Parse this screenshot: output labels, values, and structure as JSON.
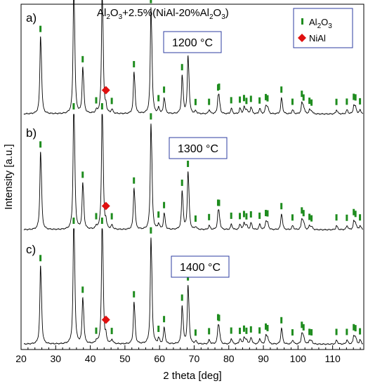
{
  "chart_data": {
    "type": "line",
    "title": {
      "base": "Al",
      "sub1": "2",
      "mid1": "O",
      "sub2": "3",
      "mid2": "+2.5%(NiAl-20%Al",
      "sub3": "2",
      "mid3": "O",
      "sub4": "3",
      "end": ")"
    },
    "xlabel": "2 theta [deg]",
    "ylabel": "Intensity [a.u.]",
    "xlim": [
      20,
      119
    ],
    "x_ticks": [
      20,
      30,
      40,
      50,
      60,
      70,
      80,
      90,
      100,
      110
    ],
    "legend": {
      "placement": "top-right",
      "entries": [
        {
          "marker": "bar",
          "color": "#1e8c1e",
          "label_parts": [
            "Al",
            "2",
            "O",
            "3"
          ]
        },
        {
          "marker": "diamond",
          "color": "#e01010",
          "label_parts": [
            "NiAl"
          ]
        }
      ]
    },
    "colors": {
      "al2o3": "#1e8c1e",
      "nial": "#e01010",
      "pattern": "#000000",
      "box": "#2d3ca0"
    },
    "panels": [
      {
        "label": "a)",
        "temperature": "1200 °C"
      },
      {
        "label": "b)",
        "temperature": "1300 °C"
      },
      {
        "label": "c)",
        "temperature": "1400 °C"
      }
    ],
    "al2o3_peaks": [
      {
        "x": 25.6,
        "y": 0.58
      },
      {
        "x": 35.2,
        "y": 0.95
      },
      {
        "x": 37.8,
        "y": 0.34
      },
      {
        "x": 41.7,
        "y": 0.02
      },
      {
        "x": 43.4,
        "y": 0.92
      },
      {
        "x": 46.2,
        "y": 0.03
      },
      {
        "x": 52.6,
        "y": 0.31
      },
      {
        "x": 57.5,
        "y": 0.79
      },
      {
        "x": 59.7,
        "y": 0.04
      },
      {
        "x": 61.3,
        "y": 0.12
      },
      {
        "x": 66.5,
        "y": 0.28
      },
      {
        "x": 68.2,
        "y": 0.43
      },
      {
        "x": 70.4,
        "y": 0.02
      },
      {
        "x": 74.3,
        "y": 0.03
      },
      {
        "x": 76.9,
        "y": 0.12
      },
      {
        "x": 77.2,
        "y": 0.06
      },
      {
        "x": 80.7,
        "y": 0.04
      },
      {
        "x": 83.2,
        "y": 0.04
      },
      {
        "x": 84.4,
        "y": 0.05
      },
      {
        "x": 85.1,
        "y": 0.03
      },
      {
        "x": 86.4,
        "y": 0.05
      },
      {
        "x": 88.9,
        "y": 0.04
      },
      {
        "x": 90.7,
        "y": 0.06
      },
      {
        "x": 91.2,
        "y": 0.04
      },
      {
        "x": 95.2,
        "y": 0.12
      },
      {
        "x": 98.4,
        "y": 0.03
      },
      {
        "x": 101.1,
        "y": 0.08
      },
      {
        "x": 101.6,
        "y": 0.04
      },
      {
        "x": 103.3,
        "y": 0.03
      },
      {
        "x": 103.9,
        "y": 0.02
      },
      {
        "x": 111.1,
        "y": 0.03
      },
      {
        "x": 114.1,
        "y": 0.03
      },
      {
        "x": 116.1,
        "y": 0.06
      },
      {
        "x": 116.6,
        "y": 0.04
      },
      {
        "x": 117.9,
        "y": 0.03
      }
    ],
    "nial_peaks": [
      {
        "x": 44.5,
        "y": 0.06
      }
    ]
  }
}
